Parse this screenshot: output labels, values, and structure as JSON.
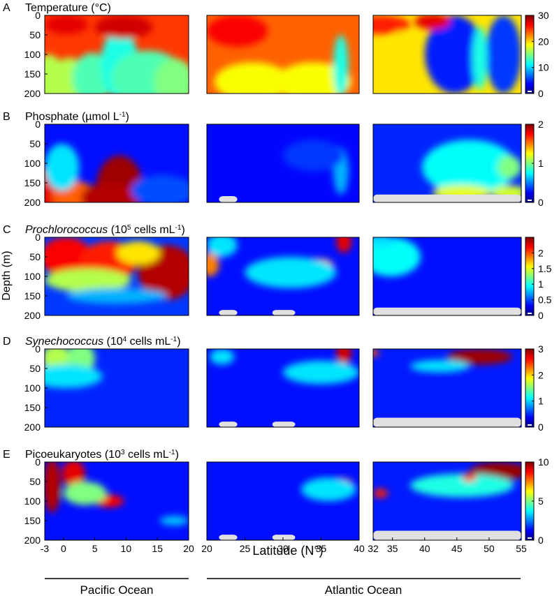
{
  "figure": {
    "shared_ylabel": "Depth (m)",
    "shared_xlabel": "Latitude (N°)",
    "ocean_labels": [
      {
        "name": "Pacific Ocean",
        "panels": [
          0
        ]
      },
      {
        "name": "Atlantic Ocean",
        "panels": [
          1,
          2
        ]
      }
    ]
  },
  "chart_data": [
    {
      "type": "heatmap",
      "panel_letter": "A",
      "title_parts": [
        {
          "text": "Temperature (°C)"
        }
      ],
      "ylim": [
        200,
        0
      ],
      "yticks": [
        0,
        50,
        100,
        150,
        200
      ],
      "colorbar": {
        "min": 0,
        "max": 30,
        "ticks": [
          0,
          10,
          20,
          30
        ],
        "colormap": "jet"
      },
      "subpanels": [
        {
          "ocean": "Pacific",
          "xlim": [
            -3,
            20
          ],
          "description": "warm surface water above an upward-bulging cooler layer peaking near 8-10°N"
        },
        {
          "ocean": "Atlantic",
          "xlim": [
            20,
            40
          ],
          "description": "warm throughout upper 200 m with cooler column near 38°N"
        },
        {
          "ocean": "Atlantic",
          "xlim": [
            32,
            55
          ],
          "description": "warm south of 40°N, cold water column north of 40°N"
        }
      ]
    },
    {
      "type": "heatmap",
      "panel_letter": "B",
      "title_parts": [
        {
          "text": "Phosphate (µmol L"
        },
        {
          "text": "-1",
          "sup": true
        },
        {
          "text": ")"
        }
      ],
      "ylim": [
        200,
        0
      ],
      "yticks": [
        0,
        50,
        100,
        150,
        200
      ],
      "colorbar": {
        "min": 0,
        "max": 2,
        "ticks": [
          0,
          1,
          2
        ],
        "colormap": "jet"
      },
      "subpanels": [
        {
          "ocean": "Pacific",
          "xlim": [
            -3,
            20
          ],
          "description": "high phosphate at depth rising to ~80 m near 8-10°N"
        },
        {
          "ocean": "Atlantic",
          "xlim": [
            20,
            40
          ],
          "description": "low phosphate throughout"
        },
        {
          "ocean": "Atlantic",
          "xlim": [
            32,
            55
          ],
          "description": "moderate phosphate north of 42°N below 50 m"
        }
      ]
    },
    {
      "type": "heatmap",
      "panel_letter": "C",
      "title_parts": [
        {
          "text": "Prochlorococcus",
          "italic": true
        },
        {
          "text": " (10"
        },
        {
          "text": "5",
          "sup": true
        },
        {
          "text": " cells mL"
        },
        {
          "text": "-1",
          "sup": true
        },
        {
          "text": ")"
        }
      ],
      "ylim": [
        200,
        0
      ],
      "yticks": [
        0,
        50,
        100,
        150,
        200
      ],
      "colorbar": {
        "min": 0,
        "max": 2.5,
        "ticks": [
          0,
          0.5,
          1,
          1.5,
          2
        ],
        "colormap": "jet"
      },
      "subpanels": [
        {
          "ocean": "Pacific",
          "xlim": [
            -3,
            20
          ],
          "description": "high abundance in upper 120 m"
        },
        {
          "ocean": "Atlantic",
          "xlim": [
            20,
            40
          ],
          "description": "subsurface maximum ~60 m near 35°N, surface max near 38°N"
        },
        {
          "ocean": "Atlantic",
          "xlim": [
            32,
            55
          ],
          "description": "moderate abundance near 32-38°N at ~60 m, low further north"
        }
      ]
    },
    {
      "type": "heatmap",
      "panel_letter": "D",
      "title_parts": [
        {
          "text": "Synechococcus",
          "italic": true
        },
        {
          "text": " (10"
        },
        {
          "text": "4",
          "sup": true
        },
        {
          "text": " cells mL"
        },
        {
          "text": "-1",
          "sup": true
        },
        {
          "text": ")"
        }
      ],
      "ylim": [
        200,
        0
      ],
      "yticks": [
        0,
        50,
        100,
        150,
        200
      ],
      "colorbar": {
        "min": 0,
        "max": 3,
        "ticks": [
          0,
          1,
          2,
          3
        ],
        "colormap": "jet"
      },
      "subpanels": [
        {
          "ocean": "Pacific",
          "xlim": [
            -3,
            20
          ],
          "description": "moderate at surface south of 5°N"
        },
        {
          "ocean": "Atlantic",
          "xlim": [
            20,
            40
          ],
          "description": "low except surface maximum near 38°N"
        },
        {
          "ocean": "Atlantic",
          "xlim": [
            32,
            55
          ],
          "description": "high surface abundance north of 42°N"
        }
      ]
    },
    {
      "type": "heatmap",
      "panel_letter": "E",
      "title_parts": [
        {
          "text": "Picoeukaryotes (10"
        },
        {
          "text": "3",
          "sup": true
        },
        {
          "text": " cells mL"
        },
        {
          "text": "-1",
          "sup": true
        },
        {
          "text": ")"
        }
      ],
      "ylim": [
        200,
        0
      ],
      "yticks": [
        0,
        50,
        100,
        150,
        200
      ],
      "colorbar": {
        "min": 0,
        "max": 10,
        "ticks": [
          0,
          5,
          10
        ],
        "colormap": "jet"
      },
      "subpanels": [
        {
          "ocean": "Pacific",
          "xlim": [
            -3,
            20
          ],
          "xticks": [
            -3,
            0,
            5,
            10,
            15,
            20
          ],
          "description": "high near equator in upper 100 m, subsurface max near 8°N"
        },
        {
          "ocean": "Atlantic",
          "xlim": [
            20,
            40
          ],
          "xticks": [
            20,
            25,
            30,
            35,
            40
          ],
          "description": "low except subsurface max near 38°N at ~50 m"
        },
        {
          "ocean": "Atlantic",
          "xlim": [
            32,
            55
          ],
          "xticks": [
            32,
            35,
            40,
            45,
            50,
            55
          ],
          "description": "high surface abundance north of 47°N, subsurface max near 42°N"
        }
      ]
    }
  ]
}
